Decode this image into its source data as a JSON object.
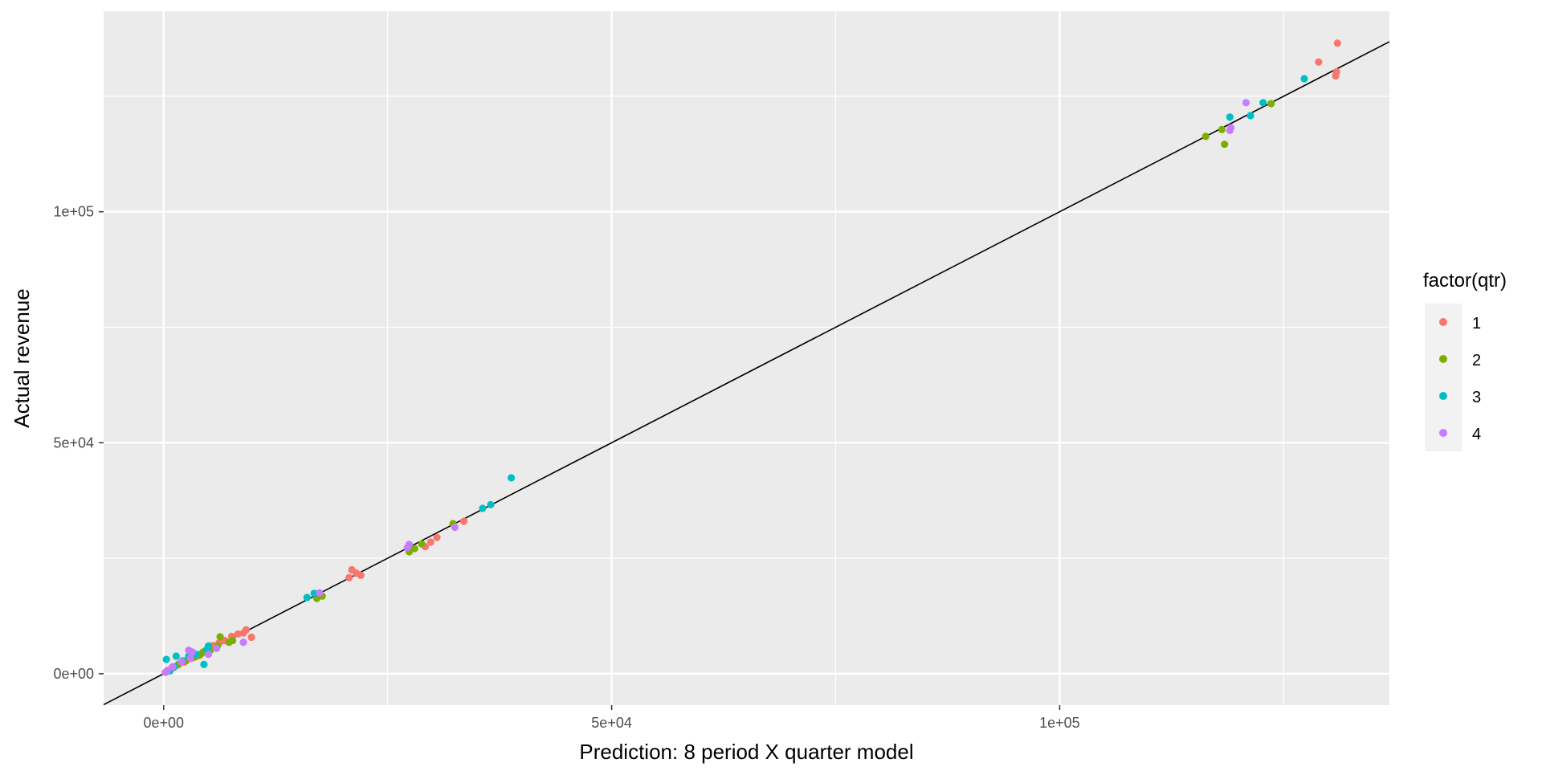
{
  "chart_data": {
    "type": "scatter",
    "title": "",
    "xlabel": "Prediction: 8 period X quarter model",
    "ylabel": "Actual revenue",
    "xlim": [
      -6700,
      136800
    ],
    "ylim": [
      -6800,
      143400
    ],
    "x_ticks": [
      {
        "value": 0,
        "label": "0e+00"
      },
      {
        "value": 50000,
        "label": "5e+04"
      },
      {
        "value": 100000,
        "label": "1e+05"
      }
    ],
    "y_ticks": [
      {
        "value": 0,
        "label": "0e+00"
      },
      {
        "value": 50000,
        "label": "5e+04"
      },
      {
        "value": 100000,
        "label": "1e+05"
      }
    ],
    "reference_line": {
      "intercept": 0,
      "slope": 1,
      "color": "#000000"
    },
    "grid": true,
    "panel_background": "#ebebeb",
    "legend": {
      "title": "factor(qtr)",
      "position": "right"
    },
    "series": [
      {
        "name": "1",
        "color": "#F8766D",
        "points": [
          [
            131000,
            136500
          ],
          [
            128900,
            132400
          ],
          [
            130900,
            130300
          ],
          [
            130800,
            129400
          ],
          [
            33500,
            33000
          ],
          [
            30500,
            29500
          ],
          [
            29800,
            28500
          ],
          [
            29200,
            27500
          ],
          [
            21000,
            22500
          ],
          [
            21500,
            21800
          ],
          [
            22000,
            21300
          ],
          [
            20700,
            20800
          ],
          [
            9800,
            7900
          ],
          [
            9200,
            9500
          ],
          [
            8900,
            8800
          ],
          [
            8300,
            8600
          ],
          [
            7600,
            8100
          ],
          [
            6800,
            7200
          ],
          [
            6200,
            6700
          ],
          [
            5500,
            6100
          ],
          [
            5000,
            5200
          ],
          [
            4200,
            4300
          ],
          [
            3600,
            3700
          ],
          [
            3000,
            3300
          ],
          [
            2300,
            2500
          ],
          [
            1600,
            1900
          ],
          [
            1100,
            1300
          ],
          [
            800,
            1000
          ]
        ]
      },
      {
        "name": "2",
        "color": "#7CAE00",
        "points": [
          [
            123600,
            123400
          ],
          [
            116300,
            116300
          ],
          [
            118100,
            117800
          ],
          [
            118400,
            114600
          ],
          [
            32300,
            32500
          ],
          [
            28800,
            28100
          ],
          [
            28000,
            27100
          ],
          [
            27400,
            26400
          ],
          [
            17700,
            16800
          ],
          [
            17100,
            16300
          ],
          [
            6300,
            8000
          ],
          [
            7700,
            7200
          ],
          [
            7300,
            6800
          ],
          [
            6000,
            6000
          ],
          [
            5200,
            5100
          ],
          [
            4400,
            4700
          ],
          [
            4000,
            4000
          ],
          [
            3300,
            3500
          ],
          [
            2500,
            2800
          ],
          [
            1700,
            2100
          ]
        ]
      },
      {
        "name": "3",
        "color": "#00BFC4",
        "points": [
          [
            127300,
            128800
          ],
          [
            122700,
            123600
          ],
          [
            121300,
            120800
          ],
          [
            119000,
            120500
          ],
          [
            38800,
            42400
          ],
          [
            36500,
            36600
          ],
          [
            35600,
            35800
          ],
          [
            16800,
            17400
          ],
          [
            16000,
            16500
          ],
          [
            5000,
            6000
          ],
          [
            4800,
            5200
          ],
          [
            4500,
            2000
          ],
          [
            3600,
            4200
          ],
          [
            2800,
            3800
          ],
          [
            1400,
            3800
          ],
          [
            300,
            3100
          ],
          [
            2100,
            2800
          ],
          [
            1200,
            1500
          ],
          [
            700,
            600
          ]
        ]
      },
      {
        "name": "4",
        "color": "#C77CFF",
        "points": [
          [
            120800,
            123600
          ],
          [
            119100,
            118200
          ],
          [
            119000,
            117600
          ],
          [
            32500,
            31700
          ],
          [
            27400,
            28000
          ],
          [
            27200,
            27300
          ],
          [
            17400,
            17500
          ],
          [
            8900,
            6800
          ],
          [
            5900,
            5500
          ],
          [
            5000,
            4200
          ],
          [
            2800,
            5100
          ],
          [
            3200,
            4700
          ],
          [
            3000,
            3400
          ],
          [
            2000,
            2600
          ],
          [
            1000,
            1500
          ],
          [
            400,
            700
          ],
          [
            200,
            300
          ]
        ]
      }
    ]
  }
}
